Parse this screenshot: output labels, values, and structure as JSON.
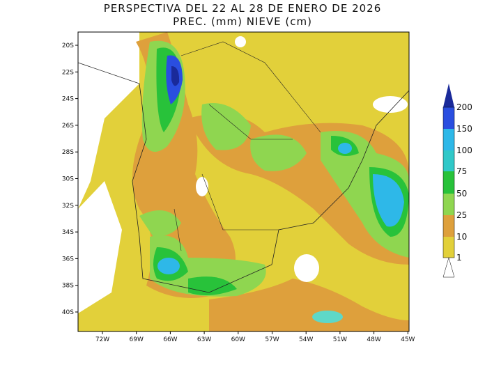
{
  "header": {
    "title": "PERSPECTIVA DEL 22 AL 28 DE ENERO DE 2026",
    "subtitle": "PREC. (mm) NIEVE (cm)"
  },
  "map": {
    "lat_labels": [
      "20S",
      "22S",
      "24S",
      "26S",
      "28S",
      "30S",
      "32S",
      "34S",
      "36S",
      "38S",
      "40S"
    ],
    "lon_labels": [
      "72W",
      "69W",
      "66W",
      "63W",
      "60W",
      "57W",
      "54W",
      "51W",
      "48W",
      "45W"
    ]
  },
  "legend": {
    "levels": [
      1,
      10,
      25,
      50,
      75,
      100,
      150,
      200
    ]
  }
}
